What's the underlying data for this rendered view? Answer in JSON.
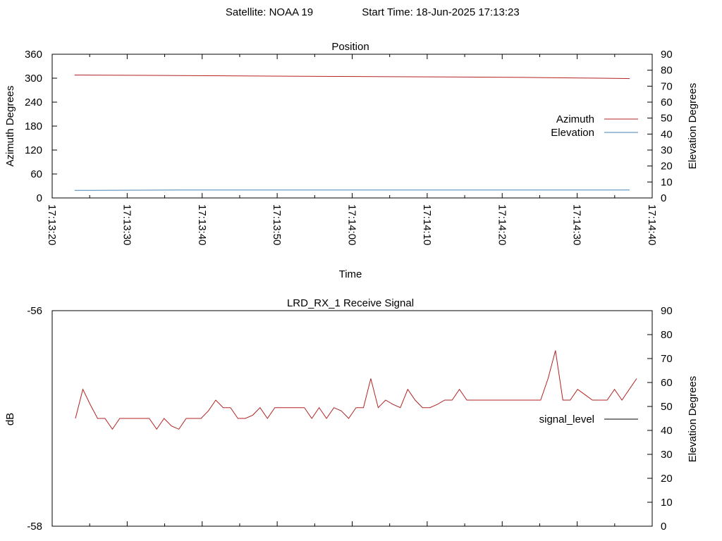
{
  "header": {
    "satellite": "Satellite: NOAA 19",
    "start_time": "Start Time: 18-Jun-2025 17:13:23"
  },
  "chart_data": [
    {
      "type": "line",
      "title": "Position",
      "xlabel": "Time",
      "ylabel": "Azimuth Degrees",
      "y2label": "Elevation Degrees",
      "x_tick_labels": [
        "17:13:20",
        "17:13:30",
        "17:13:40",
        "17:13:50",
        "17:14:00",
        "17:14:10",
        "17:14:20",
        "17:14:30",
        "17:14:40"
      ],
      "ylim": [
        0,
        360
      ],
      "y_ticks": [
        0,
        60,
        120,
        180,
        240,
        300,
        360
      ],
      "y2lim": [
        0,
        90
      ],
      "y2_ticks": [
        0,
        10,
        20,
        30,
        40,
        50,
        60,
        70,
        80,
        90
      ],
      "legend_position": "right",
      "grid": false,
      "series": [
        {
          "name": "Azimuth",
          "axis": "left",
          "color": "#b22222",
          "x": [
            "17:13:23",
            "17:13:33",
            "17:13:43",
            "17:13:53",
            "17:14:03",
            "17:14:13",
            "17:14:23",
            "17:14:33",
            "17:14:37"
          ],
          "values": [
            308,
            307,
            306,
            305,
            304,
            303,
            302,
            300,
            299
          ]
        },
        {
          "name": "Elevation",
          "axis": "right",
          "color": "#4682b4",
          "x": [
            "17:13:23",
            "17:13:40",
            "17:14:00",
            "17:14:20",
            "17:14:37"
          ],
          "values": [
            4.7,
            5.0,
            5.0,
            5.0,
            5.0
          ]
        }
      ]
    },
    {
      "type": "line",
      "title": "LRD_RX_1 Receive Signal",
      "ylabel": "dB",
      "y2label": "Elevation Degrees",
      "ylim": [
        -58,
        -56
      ],
      "y_ticks": [
        -58,
        -56
      ],
      "y2lim": [
        0,
        90
      ],
      "y2_ticks": [
        0,
        10,
        20,
        30,
        40,
        50,
        60,
        70,
        80,
        90
      ],
      "legend_position": "right",
      "grid": false,
      "series": [
        {
          "name": "signal_level",
          "color": "#b22222",
          "values": [
            -57.0,
            -56.73,
            -56.87,
            -57.0,
            -57.0,
            -57.1,
            -57.0,
            -57.0,
            -57.0,
            -57.0,
            -57.0,
            -57.1,
            -57.0,
            -57.07,
            -57.1,
            -57.0,
            -57.0,
            -57.0,
            -56.93,
            -56.83,
            -56.9,
            -56.9,
            -57.0,
            -57.0,
            -56.97,
            -56.9,
            -57.0,
            -56.9,
            -56.9,
            -56.9,
            -56.9,
            -56.9,
            -57.0,
            -56.9,
            -57.0,
            -56.9,
            -56.93,
            -57.0,
            -56.9,
            -56.9,
            -56.63,
            -56.9,
            -56.83,
            -56.87,
            -56.9,
            -56.73,
            -56.83,
            -56.9,
            -56.9,
            -56.87,
            -56.83,
            -56.83,
            -56.73,
            -56.83,
            -56.83,
            -56.83,
            -56.83,
            -56.83,
            -56.83,
            -56.83,
            -56.83,
            -56.83,
            -56.83,
            -56.83,
            -56.63,
            -56.37,
            -56.83,
            -56.83,
            -56.73,
            -56.78,
            -56.83,
            -56.83,
            -56.83,
            -56.73,
            -56.83,
            -56.73,
            -56.63
          ]
        }
      ]
    }
  ]
}
